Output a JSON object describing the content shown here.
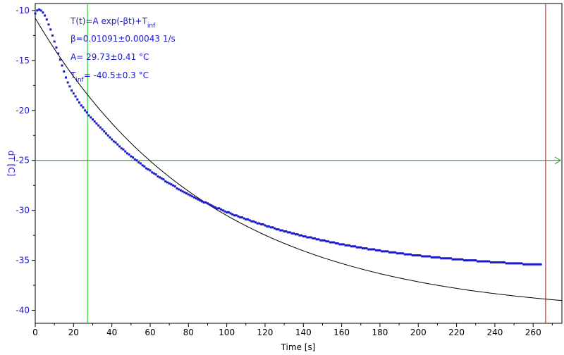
{
  "chart_data": {
    "type": "scatter",
    "xlabel": "Time [s]",
    "ylabel": "dT [C]",
    "xlim": [
      0,
      275
    ],
    "ylim": [
      -41.3,
      -9.3
    ],
    "x_ticks": [
      0,
      20,
      40,
      60,
      80,
      100,
      120,
      140,
      160,
      180,
      200,
      220,
      240,
      260
    ],
    "y_ticks": [
      -10,
      -15,
      -20,
      -25,
      -30,
      -35,
      -40
    ],
    "grid": false,
    "annotations": {
      "formula_main": "T(t)=A exp(-βt)+T",
      "formula_sub": "inf",
      "beta": "β=0.01091±0.00043 1/s",
      "amplitude": "A= 29.73±0.41 °C",
      "tinf_prefix": "T",
      "tinf_sub": "inf",
      "tinf_value": "= -40.5±0.3 °C"
    },
    "fit": {
      "A": 29.73,
      "beta": 0.01091,
      "T_inf": -40.5
    },
    "cursors": {
      "vertical_green_x": 27.3,
      "vertical_red_x": 266.5,
      "horizontal_green_y": -25
    },
    "series": [
      {
        "name": "",
        "marker": "square",
        "x_start": 0,
        "x_step": 1,
        "values": [
          -10.3,
          -10.0,
          -9.9,
          -10.0,
          -10.2,
          -10.5,
          -10.9,
          -11.4,
          -11.9,
          -12.5,
          -13.1,
          -13.7,
          -14.3,
          -14.9,
          -15.5,
          -16.1,
          -16.7,
          -17.2,
          -17.6,
          -18.0,
          -18.3,
          -18.6,
          -18.9,
          -19.2,
          -19.5,
          -19.7,
          -20.0,
          -20.2,
          -20.5,
          -20.7,
          -20.9,
          -21.1,
          -21.3,
          -21.5,
          -21.7,
          -21.9,
          -22.1,
          -22.3,
          -22.5,
          -22.7,
          -22.9,
          -23.1,
          -23.2,
          -23.4,
          -23.6,
          -23.8,
          -23.9,
          -24.1,
          -24.3,
          -24.4,
          -24.6,
          -24.7,
          -24.9,
          -25.0,
          -25.2,
          -25.3,
          -25.5,
          -25.6,
          -25.8,
          -25.9,
          -26.0,
          -26.2,
          -26.3,
          -26.4,
          -26.6,
          -26.7,
          -26.8,
          -26.9,
          -27.1,
          -27.2,
          -27.3,
          -27.4,
          -27.5,
          -27.6,
          -27.8,
          -27.9,
          -28.0,
          -28.1,
          -28.2,
          -28.3,
          -28.4,
          -28.5,
          -28.6,
          -28.7,
          -28.8,
          -28.9,
          -29.0,
          -29.1,
          -29.2,
          -29.2,
          -29.3,
          -29.4,
          -29.5,
          -29.6,
          -29.7,
          -29.8,
          -29.8,
          -29.9,
          -30.0,
          -30.1,
          -30.2,
          -30.2,
          -30.3,
          -30.4,
          -30.5,
          -30.5,
          -30.6,
          -30.7,
          -30.7,
          -30.8,
          -30.9,
          -30.9,
          -31.0,
          -31.1,
          -31.1,
          -31.2,
          -31.3,
          -31.3,
          -31.4,
          -31.4,
          -31.5,
          -31.6,
          -31.6,
          -31.7,
          -31.7,
          -31.8,
          -31.9,
          -31.9,
          -32.0,
          -32.0,
          -32.1,
          -32.1,
          -32.2,
          -32.2,
          -32.3,
          -32.3,
          -32.4,
          -32.4,
          -32.5,
          -32.5,
          -32.6,
          -32.6,
          -32.7,
          -32.7,
          -32.7,
          -32.8,
          -32.8,
          -32.9,
          -32.9,
          -33.0,
          -33.0,
          -33.0,
          -33.1,
          -33.1,
          -33.2,
          -33.2,
          -33.2,
          -33.3,
          -33.3,
          -33.4,
          -33.4,
          -33.4,
          -33.5,
          -33.5,
          -33.5,
          -33.6,
          -33.6,
          -33.6,
          -33.7,
          -33.7,
          -33.7,
          -33.8,
          -33.8,
          -33.8,
          -33.9,
          -33.9,
          -33.9,
          -33.9,
          -34.0,
          -34.0,
          -34.0,
          -34.1,
          -34.1,
          -34.1,
          -34.1,
          -34.2,
          -34.2,
          -34.2,
          -34.2,
          -34.3,
          -34.3,
          -34.3,
          -34.3,
          -34.4,
          -34.4,
          -34.4,
          -34.4,
          -34.5,
          -34.5,
          -34.5,
          -34.5,
          -34.5,
          -34.6,
          -34.6,
          -34.6,
          -34.6,
          -34.6,
          -34.7,
          -34.7,
          -34.7,
          -34.7,
          -34.7,
          -34.8,
          -34.8,
          -34.8,
          -34.8,
          -34.8,
          -34.8,
          -34.9,
          -34.9,
          -34.9,
          -34.9,
          -34.9,
          -34.9,
          -35.0,
          -35.0,
          -35.0,
          -35.0,
          -35.0,
          -35.0,
          -35.0,
          -35.1,
          -35.1,
          -35.1,
          -35.1,
          -35.1,
          -35.1,
          -35.1,
          -35.2,
          -35.2,
          -35.2,
          -35.2,
          -35.2,
          -35.2,
          -35.2,
          -35.2,
          -35.3,
          -35.3,
          -35.3,
          -35.3,
          -35.3,
          -35.3,
          -35.3,
          -35.3,
          -35.3,
          -35.4,
          -35.4,
          -35.4,
          -35.4,
          -35.4,
          -35.4,
          -35.4,
          -35.4,
          -35.4,
          -35.4
        ]
      }
    ],
    "colors": {
      "data": "#1a1acc",
      "fit": "#000000",
      "green_cursor": "#00cc00",
      "hline": "#1e8c1e",
      "red_cursor": "#cc0000",
      "axis_label": "#1a1acc"
    }
  }
}
